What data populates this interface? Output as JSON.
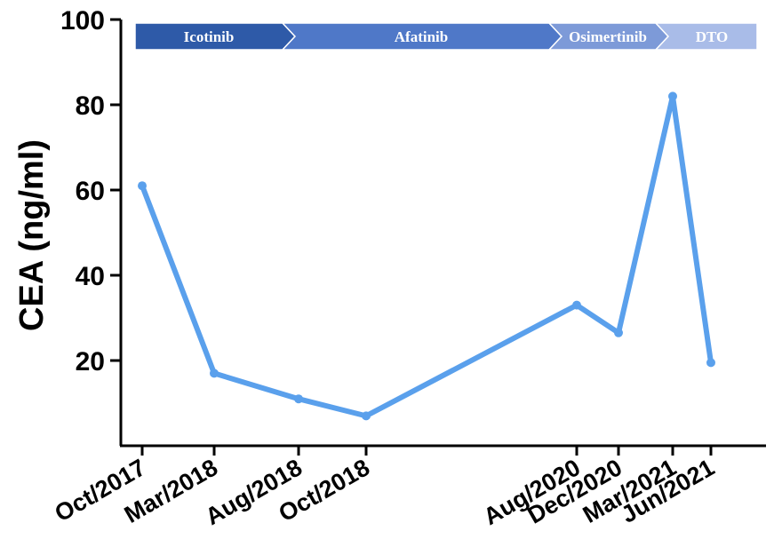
{
  "chart_data": {
    "type": "line",
    "ylabel": "CEA (ng/ml)",
    "xlabel": "",
    "ylim": [
      0,
      100
    ],
    "yticks": [
      20,
      40,
      60,
      80,
      100
    ],
    "categories": [
      "Oct/2017",
      "Mar/2018",
      "Aug/2018",
      "Oct/2018",
      "Aug/2020",
      "Dec/2020",
      "Mar/2021",
      "Jun/2021"
    ],
    "series": [
      {
        "values": [
          61,
          17,
          11,
          7,
          33,
          26.5,
          82,
          19.5
        ]
      }
    ],
    "phases": [
      {
        "label": "Icotinib",
        "color": "#2e5aa8"
      },
      {
        "label": "Afatinib",
        "color": "#4f78c8"
      },
      {
        "label": "Osimertinib",
        "color": "#7d9ad8"
      },
      {
        "label": "DTO",
        "color": "#a9bce8"
      }
    ],
    "line_color": "#5aa0ec",
    "grid": false
  }
}
